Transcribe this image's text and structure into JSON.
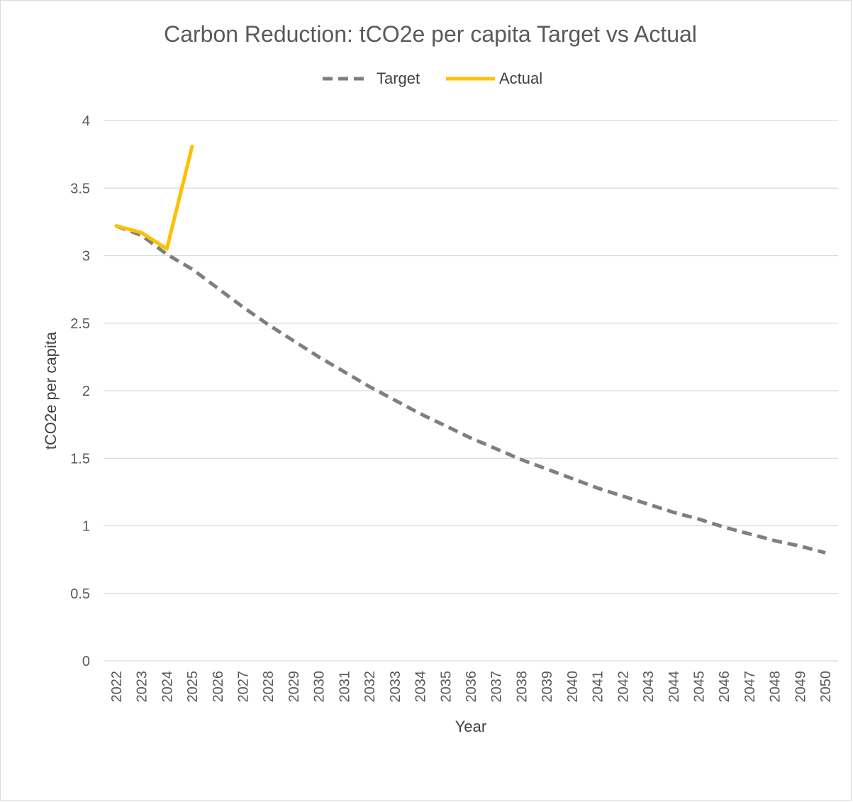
{
  "colors": {
    "target": "#7f7f7f",
    "actual": "#ffc000",
    "grid": "#d9d9d9",
    "text": "#595959"
  },
  "chart_data": {
    "type": "line",
    "title": "Carbon Reduction: tCO2e per capita Target vs Actual",
    "xlabel": "Year",
    "ylabel": "tCO2e per capita",
    "ylim": [
      0,
      4
    ],
    "yticks": [
      "0",
      "0.5",
      "1",
      "1.5",
      "2",
      "2.5",
      "3",
      "3.5",
      "4"
    ],
    "grid": true,
    "legend_position": "top",
    "categories": [
      "2022",
      "2023",
      "2024",
      "2025",
      "2026",
      "2027",
      "2028",
      "2029",
      "2030",
      "2031",
      "2032",
      "2033",
      "2034",
      "2035",
      "2036",
      "2037",
      "2038",
      "2039",
      "2040",
      "2041",
      "2042",
      "2043",
      "2044",
      "2045",
      "2046",
      "2047",
      "2048",
      "2049",
      "2050"
    ],
    "series": [
      {
        "name": "Target",
        "style": "dashed",
        "values": [
          3.22,
          3.15,
          3.01,
          2.9,
          2.76,
          2.62,
          2.49,
          2.37,
          2.25,
          2.14,
          2.03,
          1.93,
          1.83,
          1.74,
          1.65,
          1.57,
          1.49,
          1.42,
          1.35,
          1.28,
          1.22,
          1.16,
          1.1,
          1.05,
          0.99,
          0.94,
          0.89,
          0.85,
          0.8
        ]
      },
      {
        "name": "Actual",
        "style": "solid",
        "values": [
          3.22,
          3.17,
          3.05,
          3.81,
          null,
          null,
          null,
          null,
          null,
          null,
          null,
          null,
          null,
          null,
          null,
          null,
          null,
          null,
          null,
          null,
          null,
          null,
          null,
          null,
          null,
          null,
          null,
          null,
          null
        ]
      }
    ]
  }
}
